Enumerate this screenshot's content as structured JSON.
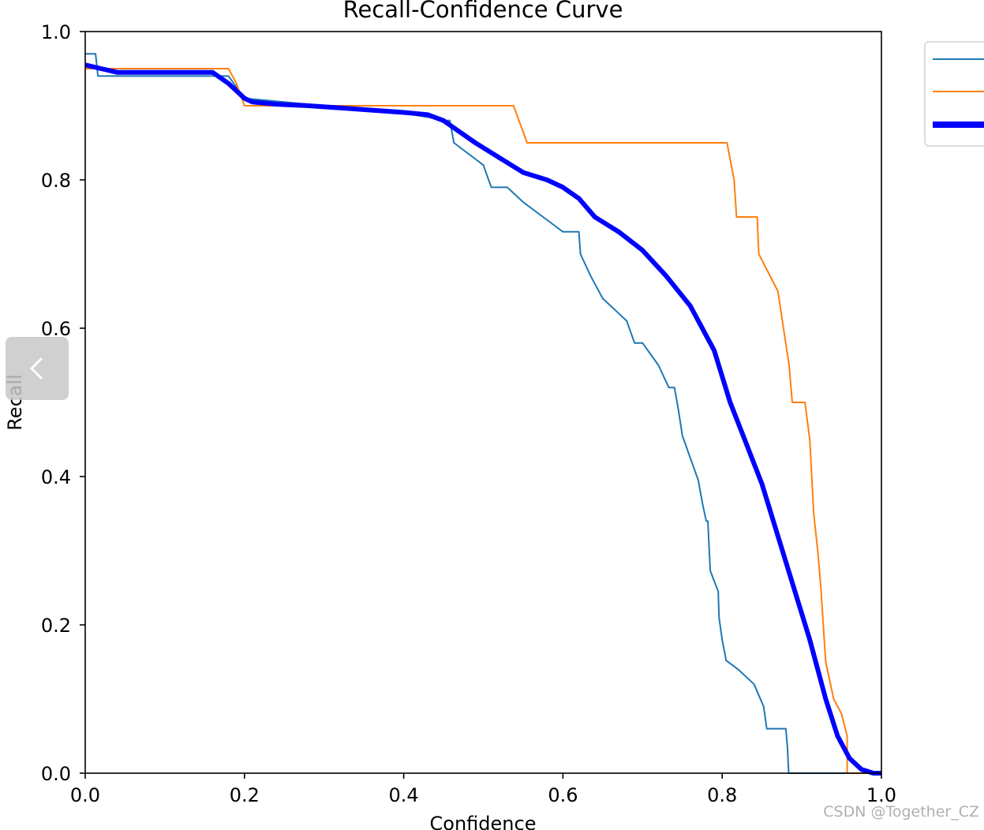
{
  "chart_data": {
    "type": "line",
    "title": "Recall-Confidence Curve",
    "xlabel": "Confidence",
    "ylabel": "Recall",
    "xlim": [
      0,
      1
    ],
    "ylim": [
      0,
      1
    ],
    "xticks": [
      "0.0",
      "0.2",
      "0.4",
      "0.6",
      "0.8",
      "1.0"
    ],
    "yticks": [
      "0.0",
      "0.2",
      "0.4",
      "0.6",
      "0.8",
      "1.0"
    ],
    "grid": false,
    "legend_position": "top-right",
    "series": [
      {
        "color": "#1f77b4",
        "x": [
          0.0,
          0.013,
          0.016,
          0.04,
          0.18,
          0.2,
          0.3,
          0.4,
          0.455,
          0.458,
          0.463,
          0.5,
          0.51,
          0.53,
          0.55,
          0.575,
          0.6,
          0.62,
          0.622,
          0.635,
          0.65,
          0.67,
          0.68,
          0.69,
          0.7,
          0.72,
          0.733,
          0.737,
          0.74,
          0.745,
          0.75,
          0.76,
          0.77,
          0.775,
          0.78,
          0.782,
          0.785,
          0.795,
          0.796,
          0.8,
          0.805,
          0.82,
          0.83,
          0.84,
          0.852,
          0.856,
          0.866,
          0.868,
          0.88,
          0.882,
          0.8835,
          0.885,
          0.9,
          0.95,
          1.0
        ],
        "y": [
          0.97,
          0.97,
          0.94,
          0.94,
          0.94,
          0.91,
          0.9,
          0.89,
          0.88,
          0.88,
          0.85,
          0.82,
          0.79,
          0.79,
          0.77,
          0.75,
          0.73,
          0.73,
          0.7,
          0.67,
          0.64,
          0.62,
          0.61,
          0.58,
          0.58,
          0.55,
          0.52,
          0.52,
          0.52,
          0.49,
          0.455,
          0.425,
          0.395,
          0.365,
          0.34,
          0.34,
          0.273,
          0.245,
          0.21,
          0.18,
          0.152,
          0.14,
          0.13,
          0.12,
          0.09,
          0.06,
          0.06,
          0.06,
          0.06,
          0.035,
          0.0,
          0.0,
          0.0,
          0.0,
          0.0
        ]
      },
      {
        "color": "#ff7f0e",
        "x": [
          0.0,
          0.003,
          0.18,
          0.19,
          0.2,
          0.538,
          0.555,
          0.8,
          0.806,
          0.815,
          0.818,
          0.844,
          0.846,
          0.87,
          0.877,
          0.884,
          0.888,
          0.9,
          0.904,
          0.91,
          0.915,
          0.92,
          0.924,
          0.927,
          0.93,
          0.94,
          0.95,
          0.957,
          0.957,
          0.97,
          1.0
        ],
        "y": [
          0.95,
          0.95,
          0.95,
          0.93,
          0.9,
          0.9,
          0.85,
          0.85,
          0.85,
          0.8,
          0.75,
          0.75,
          0.7,
          0.65,
          0.6,
          0.55,
          0.5,
          0.5,
          0.5,
          0.45,
          0.35,
          0.3,
          0.25,
          0.2,
          0.15,
          0.1,
          0.08,
          0.05,
          0.0,
          0.0,
          0.0
        ]
      },
      {
        "color": "#0000ff",
        "x": [
          0.0,
          0.02,
          0.04,
          0.08,
          0.12,
          0.16,
          0.18,
          0.2,
          0.21,
          0.24,
          0.28,
          0.32,
          0.36,
          0.4,
          0.43,
          0.45,
          0.47,
          0.49,
          0.52,
          0.55,
          0.58,
          0.6,
          0.62,
          0.64,
          0.67,
          0.7,
          0.73,
          0.76,
          0.79,
          0.81,
          0.83,
          0.85,
          0.87,
          0.89,
          0.91,
          0.93,
          0.945,
          0.96,
          0.975,
          0.99,
          1.0
        ],
        "y": [
          0.955,
          0.95,
          0.945,
          0.945,
          0.945,
          0.945,
          0.93,
          0.91,
          0.905,
          0.902,
          0.9,
          0.897,
          0.894,
          0.891,
          0.888,
          0.88,
          0.865,
          0.85,
          0.83,
          0.81,
          0.8,
          0.79,
          0.775,
          0.75,
          0.73,
          0.705,
          0.67,
          0.63,
          0.57,
          0.5,
          0.445,
          0.39,
          0.32,
          0.25,
          0.18,
          0.1,
          0.05,
          0.02,
          0.005,
          0.0,
          0.0
        ]
      }
    ]
  },
  "watermark": "CSDN @Together_CZ",
  "nav_icon": "chevron-left-icon"
}
